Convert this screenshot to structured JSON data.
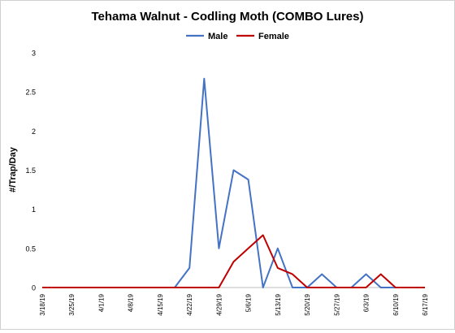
{
  "chart_data": {
    "type": "line",
    "title": "Tehama Walnut - Codling Moth (COMBO Lures)",
    "xlabel": "",
    "ylabel": "#/Trap/Day",
    "ylim": [
      0,
      3
    ],
    "yticks": [
      "0",
      "0.5",
      "1",
      "1.5",
      "2",
      "2.5",
      "3"
    ],
    "grid": false,
    "legend_position": "top-center",
    "x_tick_labels": [
      "3/18/19",
      "3/25/19",
      "4/1/19",
      "4/8/19",
      "4/15/19",
      "4/22/19",
      "4/29/19",
      "5/6/19",
      "5/13/19",
      "5/20/19",
      "5/27/19",
      "6/3/19",
      "6/10/19",
      "6/17/19"
    ],
    "x": [
      "3/18/19",
      "3/21/19",
      "3/25/19",
      "3/28/19",
      "4/1/19",
      "4/4/19",
      "4/8/19",
      "4/11/19",
      "4/15/19",
      "4/18/19",
      "4/22/19",
      "4/25/19",
      "4/29/19",
      "5/2/19",
      "5/6/19",
      "5/9/19",
      "5/13/19",
      "5/16/19",
      "5/20/19",
      "5/23/19",
      "5/27/19",
      "5/30/19",
      "6/3/19",
      "6/6/19",
      "6/10/19",
      "6/13/19",
      "6/17/19"
    ],
    "series": [
      {
        "name": "Male",
        "color": "#4472C4",
        "values": [
          0,
          0,
          0,
          0,
          0,
          0,
          0,
          0,
          0,
          0,
          0.25,
          2.67,
          0.5,
          1.5,
          1.38,
          0,
          0.5,
          0,
          0,
          0.17,
          0,
          0,
          0.17,
          0,
          0,
          0,
          0
        ]
      },
      {
        "name": "Female",
        "color": "#C00000",
        "values": [
          0,
          0,
          0,
          0,
          0,
          0,
          0,
          0,
          0,
          0,
          0,
          0,
          0,
          0.33,
          0.5,
          0.67,
          0.25,
          0.17,
          0,
          0,
          0,
          0,
          0,
          0.17,
          0,
          0,
          0
        ]
      }
    ]
  }
}
